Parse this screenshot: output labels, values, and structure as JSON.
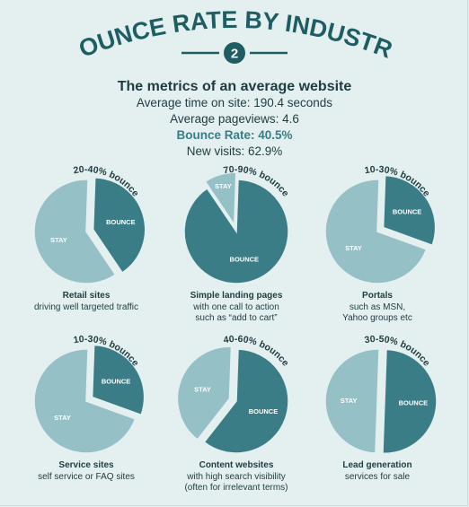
{
  "header": {
    "title": "BOUNCE RATE BY INDUSTRY",
    "number": "2",
    "subtitle": "The metrics of an average website",
    "metrics": [
      "Average time on site: 190.4 seconds",
      "Average pageviews: 4.6",
      "Bounce Rate: 40.5%",
      "New visits: 62.9%"
    ]
  },
  "colors": {
    "background": "#e3f0ef",
    "bounce": "#3b7d86",
    "stay": "#94c0c6",
    "title": "#1e5d63"
  },
  "chart_data": [
    {
      "type": "pie",
      "range_label": "20-40% bounce",
      "slices": [
        {
          "label": "BOUNCE",
          "value": 40,
          "exploded": true
        },
        {
          "label": "STAY",
          "value": 60
        }
      ],
      "title": "Retail sites",
      "caption": [
        "driving well targeted traffic"
      ]
    },
    {
      "type": "pie",
      "range_label": "70-90% bounce",
      "slices": [
        {
          "label": "BOUNCE",
          "value": 90
        },
        {
          "label": "STAY",
          "value": 10,
          "exploded": true
        }
      ],
      "title": "Simple landing pages",
      "caption": [
        "with one call to action",
        "such as “add to cart”"
      ]
    },
    {
      "type": "pie",
      "range_label": "10-30% bounce",
      "slices": [
        {
          "label": "BOUNCE",
          "value": 30,
          "exploded": true
        },
        {
          "label": "STAY",
          "value": 70
        }
      ],
      "title": "Portals",
      "caption": [
        "such as MSN,",
        "Yahoo groups etc"
      ]
    },
    {
      "type": "pie",
      "range_label": "10-30% bounce",
      "slices": [
        {
          "label": "BOUNCE",
          "value": 30,
          "exploded": true
        },
        {
          "label": "STAY",
          "value": 70
        }
      ],
      "title": "Service sites",
      "caption": [
        "self service or FAQ sites"
      ]
    },
    {
      "type": "pie",
      "range_label": "40-60% bounce",
      "slices": [
        {
          "label": "BOUNCE",
          "value": 60
        },
        {
          "label": "STAY",
          "value": 40,
          "exploded": true
        }
      ],
      "title": "Content websites",
      "caption": [
        "with high search visibility",
        "(often for irrelevant terms)"
      ]
    },
    {
      "type": "pie",
      "range_label": "30-50% bounce",
      "slices": [
        {
          "label": "BOUNCE",
          "value": 50,
          "exploded": true
        },
        {
          "label": "STAY",
          "value": 50
        }
      ],
      "title": "Lead generation",
      "caption": [
        "services for sale"
      ]
    }
  ]
}
